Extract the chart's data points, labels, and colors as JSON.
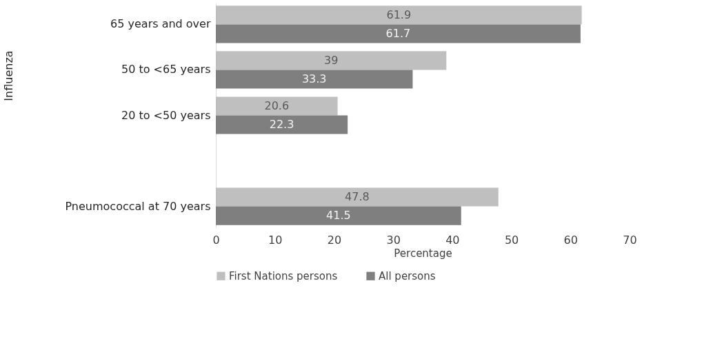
{
  "chart_data": {
    "type": "bar",
    "orientation": "horizontal",
    "xlabel": "Percentage",
    "categories": [
      "65 years and over",
      "50 to <65 years",
      "20 to <50 years",
      null,
      "Pneumococcal at 70 years"
    ],
    "series": [
      {
        "name": "First Nations persons",
        "color": "#bfbfbf",
        "values": [
          61.9,
          39,
          20.6,
          null,
          47.8
        ]
      },
      {
        "name": "All persons",
        "color": "#7f7f7f",
        "values": [
          61.7,
          33.3,
          22.3,
          null,
          41.5
        ]
      }
    ],
    "xlim": [
      0,
      70
    ],
    "xticks": [
      0,
      10,
      20,
      30,
      40,
      50,
      60,
      70
    ],
    "annotations": [
      "Influenza"
    ],
    "data_labels": true,
    "grid": false,
    "legend": "bottom"
  }
}
